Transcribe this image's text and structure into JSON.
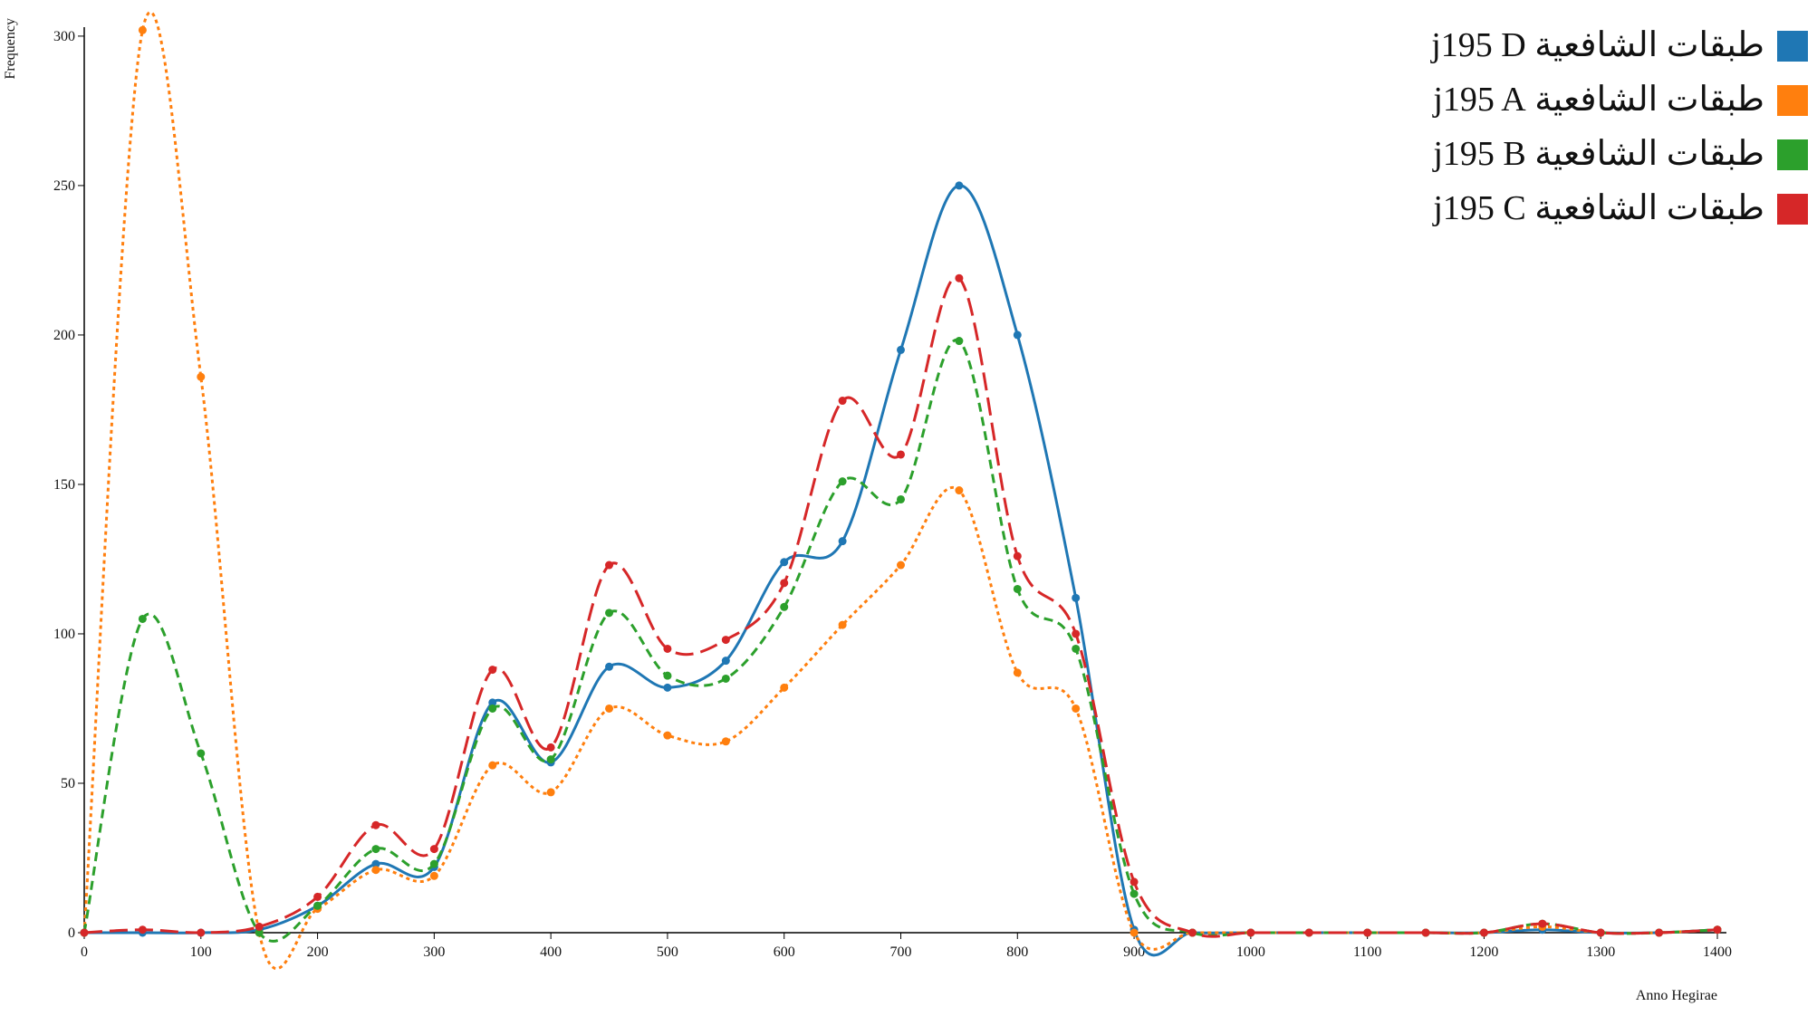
{
  "chart_data": {
    "type": "line",
    "x_label": "Anno Hegirae",
    "y_label": "Frequency",
    "x": [
      0,
      50,
      100,
      150,
      200,
      250,
      300,
      350,
      400,
      450,
      500,
      550,
      600,
      650,
      700,
      750,
      800,
      850,
      900,
      950,
      1000,
      1050,
      1100,
      1150,
      1200,
      1250,
      1300,
      1350,
      1400
    ],
    "series": [
      {
        "name": "طبقات الشافعية j195 D",
        "color": "#1f77b4",
        "values": [
          0,
          0,
          0,
          1,
          9,
          23,
          22,
          77,
          57,
          89,
          82,
          91,
          124,
          131,
          195,
          250,
          200,
          112,
          1,
          0,
          0,
          0,
          0,
          0,
          0,
          1,
          0,
          0,
          1
        ]
      },
      {
        "name": "طبقات الشافعية j195 A",
        "color": "#ff7f0e",
        "values": [
          0,
          302,
          186,
          0,
          8,
          21,
          19,
          56,
          47,
          75,
          66,
          64,
          82,
          103,
          123,
          148,
          87,
          75,
          0,
          0,
          0,
          0,
          0,
          0,
          0,
          2,
          0,
          0,
          1
        ]
      },
      {
        "name": "طبقات الشافعية j195 B",
        "color": "#2ca02c",
        "values": [
          0,
          105,
          60,
          0,
          9,
          28,
          23,
          75,
          58,
          107,
          86,
          85,
          109,
          151,
          145,
          198,
          115,
          95,
          13,
          0,
          0,
          0,
          0,
          0,
          0,
          3,
          0,
          0,
          1
        ]
      },
      {
        "name": "طبقات الشافعية j195 C",
        "color": "#d62728",
        "values": [
          0,
          1,
          0,
          2,
          12,
          36,
          28,
          88,
          62,
          123,
          95,
          98,
          117,
          178,
          160,
          219,
          126,
          100,
          17,
          0,
          0,
          0,
          0,
          0,
          0,
          3,
          0,
          0,
          1
        ]
      }
    ],
    "xlim": [
      0,
      1400
    ],
    "ylim": [
      0,
      303
    ],
    "xticks": [
      0,
      100,
      200,
      300,
      400,
      500,
      600,
      700,
      800,
      900,
      1000,
      1100,
      1200,
      1300,
      1400
    ],
    "yticks": [
      0,
      50,
      100,
      150,
      200,
      250,
      300
    ]
  }
}
